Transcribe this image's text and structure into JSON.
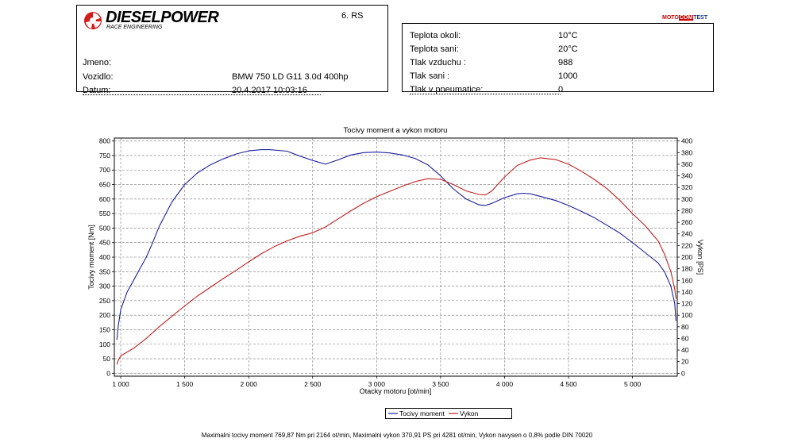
{
  "header": {
    "brand": "DIESELPOWER",
    "brand_sub": "RACE ENGINEERING",
    "test_no": "6. RS",
    "partner_logo": [
      "MOTO",
      "COM",
      "TEST"
    ]
  },
  "vehicle": {
    "rows": [
      {
        "label": "Jmeno:",
        "value": ""
      },
      {
        "label": "Vozidlo:",
        "value": "BMW 750 LD G11 3.0d 400hp"
      },
      {
        "label": "Datum:",
        "value": "20.4.2017 10:03:16"
      }
    ]
  },
  "conditions": {
    "rows": [
      {
        "label": "Teplota okoli:",
        "value": "10°C"
      },
      {
        "label": "Teplota sani:",
        "value": "20°C"
      },
      {
        "label": "Tlak vzduchu :",
        "value": "988"
      },
      {
        "label": "Tlak sani :",
        "value": "1000"
      },
      {
        "label": "Tlak v pneumatice:",
        "value": "0"
      }
    ]
  },
  "chart_data": {
    "type": "line",
    "title": "Tocivy moment a vykon motoru",
    "xlabel": "Otacky motoru [ot/min]",
    "ylabel": "Tocivy moment [Nm]",
    "y2label": "Vykon [PS]",
    "xlim": [
      950,
      5350
    ],
    "ylim": [
      -10,
      810
    ],
    "y2lim": [
      -5,
      405
    ],
    "x_ticks": [
      1000,
      1500,
      2000,
      2500,
      3000,
      3500,
      4000,
      4500,
      5000
    ],
    "x_tick_labels": [
      "1 000",
      "1 500",
      "2 000",
      "2 500",
      "3 000",
      "3 500",
      "4 000",
      "4 500",
      "5 000"
    ],
    "y_ticks": [
      0,
      50,
      100,
      150,
      200,
      250,
      300,
      350,
      400,
      450,
      500,
      550,
      600,
      650,
      700,
      750,
      800
    ],
    "y2_ticks": [
      0,
      20,
      40,
      60,
      80,
      100,
      120,
      140,
      160,
      180,
      200,
      220,
      240,
      260,
      280,
      300,
      320,
      340,
      360,
      380,
      400
    ],
    "grid": true,
    "legend_position": "bottom",
    "series": [
      {
        "name": "Tocivy moment",
        "axis": "left",
        "color": "#1f1f9a",
        "x": [
          970,
          980,
          1000,
          1050,
          1100,
          1150,
          1200,
          1250,
          1300,
          1400,
          1500,
          1600,
          1700,
          1800,
          1900,
          2000,
          2100,
          2164,
          2300,
          2400,
          2500,
          2600,
          2700,
          2800,
          2900,
          3000,
          3100,
          3200,
          3300,
          3400,
          3500,
          3600,
          3700,
          3800,
          3850,
          3900,
          4000,
          4100,
          4150,
          4200,
          4300,
          4400,
          4500,
          4600,
          4700,
          4800,
          4900,
          5000,
          5100,
          5200,
          5250,
          5300,
          5330,
          5340
        ],
        "y": [
          115,
          160,
          220,
          280,
          320,
          360,
          400,
          450,
          505,
          590,
          650,
          690,
          718,
          738,
          755,
          766,
          770,
          770,
          765,
          748,
          733,
          720,
          735,
          752,
          760,
          762,
          759,
          752,
          740,
          718,
          680,
          635,
          600,
          580,
          578,
          585,
          605,
          618,
          620,
          618,
          607,
          595,
          578,
          558,
          536,
          510,
          483,
          450,
          415,
          380,
          350,
          300,
          240,
          180
        ]
      },
      {
        "name": "Vykon",
        "axis": "right",
        "color": "#c02020",
        "x": [
          970,
          980,
          1000,
          1100,
          1200,
          1300,
          1400,
          1500,
          1600,
          1700,
          1800,
          1900,
          2000,
          2100,
          2200,
          2300,
          2400,
          2500,
          2600,
          2700,
          2800,
          2900,
          3000,
          3100,
          3200,
          3300,
          3400,
          3500,
          3600,
          3700,
          3800,
          3850,
          3900,
          4000,
          4100,
          4200,
          4281,
          4400,
          4500,
          4600,
          4700,
          4800,
          4900,
          5000,
          5100,
          5200,
          5250,
          5300,
          5330,
          5340
        ],
        "y": [
          15,
          22,
          30,
          43,
          60,
          80,
          98,
          116,
          133,
          148,
          163,
          177,
          192,
          206,
          218,
          228,
          236,
          242,
          252,
          266,
          280,
          293,
          304,
          313,
          322,
          330,
          335,
          334,
          325,
          314,
          308,
          307,
          314,
          338,
          358,
          367,
          371,
          368,
          360,
          348,
          334,
          318,
          298,
          275,
          254,
          228,
          205,
          175,
          145,
          128
        ]
      }
    ]
  },
  "legend": {
    "items": [
      {
        "label": "Tocivy moment",
        "color": "#1f1f9a"
      },
      {
        "label": "Vykon",
        "color": "#c02020"
      }
    ]
  },
  "footer": {
    "summary": "Maximalni tocivy moment 769,87 Nm pri 2164 ot/min,  Maximalni vykon 370,91 PS pri 4281 ot/min,  Vykon navysen o 0,8% podle DIN 70020"
  }
}
